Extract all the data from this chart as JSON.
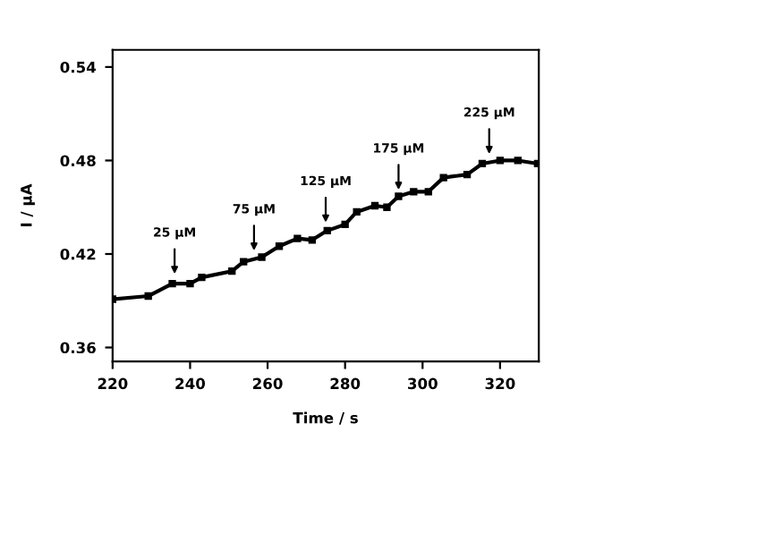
{
  "chart_data": {
    "type": "line",
    "xlabel": "Time / s",
    "ylabel": "I / µA",
    "x": [
      220,
      229.2,
      235.4,
      240,
      243,
      250.8,
      253.8,
      258.5,
      263,
      267.7,
      271.5,
      275.4,
      280,
      283,
      287.7,
      290.8,
      293.8,
      297.7,
      301.5,
      305.4,
      311.5,
      315.4,
      320,
      324.6,
      329.7
    ],
    "values": [
      0.391,
      0.393,
      0.401,
      0.401,
      0.405,
      0.409,
      0.415,
      0.418,
      0.425,
      0.43,
      0.429,
      0.435,
      0.439,
      0.447,
      0.451,
      0.45,
      0.457,
      0.46,
      0.46,
      0.469,
      0.471,
      0.478,
      0.48,
      0.48,
      0.478
    ],
    "color": "#000000",
    "marker": "square",
    "line_style": "solid",
    "xlim": [
      220,
      330
    ],
    "ylim": [
      0.351,
      0.551
    ],
    "xticks": [
      220,
      240,
      260,
      280,
      300,
      320
    ],
    "yticks": [
      0.36,
      0.42,
      0.48,
      0.54
    ],
    "grid": false,
    "legend": false,
    "annotations": [
      {
        "text": "25 µM",
        "x": 236,
        "y": 0.404
      },
      {
        "text": "75 µM",
        "x": 256.5,
        "y": 0.419
      },
      {
        "text": "125 µM",
        "x": 275,
        "y": 0.437
      },
      {
        "text": "175 µM",
        "x": 293.8,
        "y": 0.458
      },
      {
        "text": "225 µM",
        "x": 317.2,
        "y": 0.481
      }
    ]
  }
}
